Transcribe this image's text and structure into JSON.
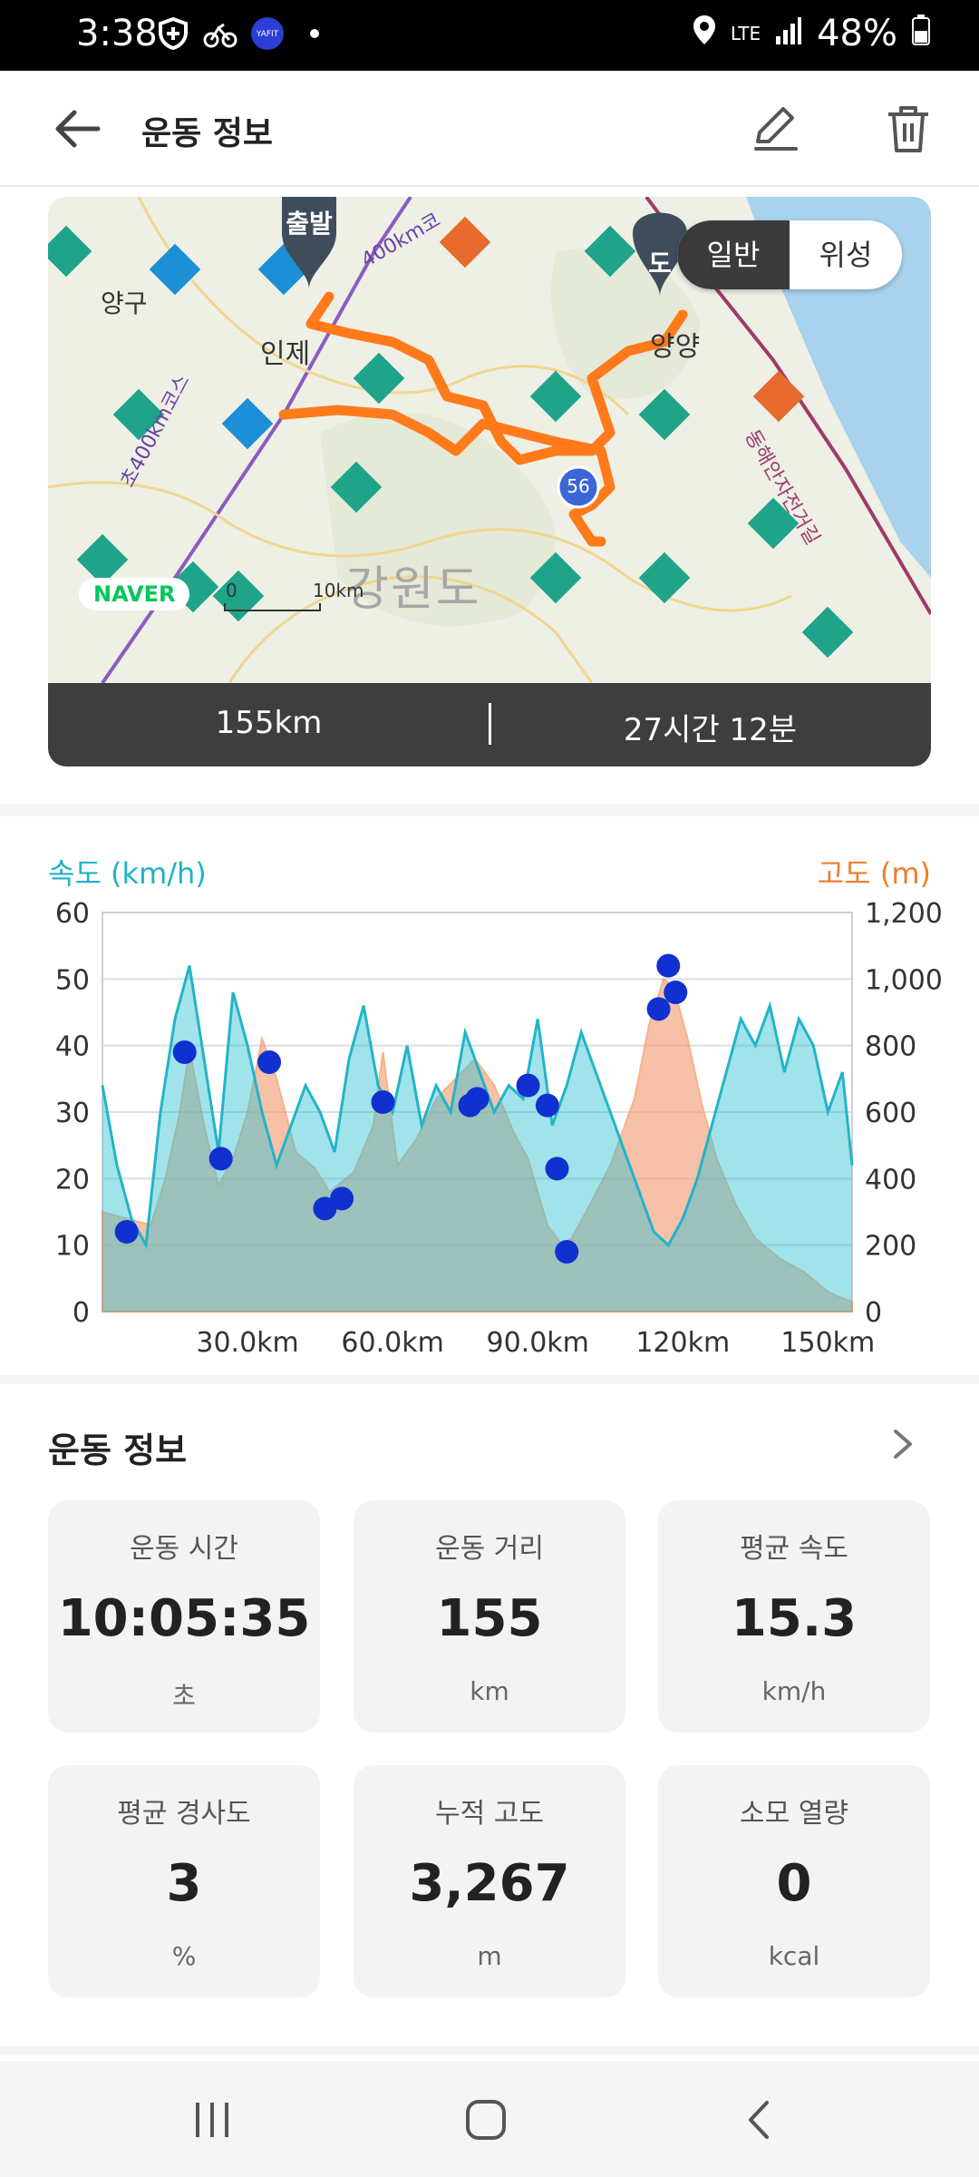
{
  "status_bar": {
    "time": "3:38",
    "network": "LTE",
    "battery": "48%",
    "left_icons": [
      "shield-icon",
      "bike-app-icon",
      "yafit-move-icon",
      "dot-icon"
    ]
  },
  "header": {
    "title": "운동 정보",
    "back_icon": "arrow-left-icon",
    "edit_icon": "pencil-icon",
    "delete_icon": "trash-icon"
  },
  "map": {
    "toggle": {
      "options": [
        "일반",
        "위성"
      ],
      "selected": "일반"
    },
    "labels": {
      "start_pin": "출발",
      "end_pin": "도",
      "place_yanggu": "양구",
      "place_inje": "인제",
      "place_yangyang": "양양",
      "region": "강원도",
      "road_1": "400km코",
      "road_2": "초400km코스",
      "coastal_road": "동해안자전거길",
      "route_badge": "56",
      "scale_zero": "0",
      "scale_ten": "10km",
      "naver_logo": "NAVER"
    },
    "route_color": "#ff7a1a",
    "summary": {
      "distance": "155km",
      "duration": "27시간 12분"
    }
  },
  "chart": {
    "left_axis_label": "속도 (km/h)",
    "right_axis_label": "고도 (m)",
    "left_ticks": [
      "0",
      "10",
      "20",
      "30",
      "40",
      "50",
      "60"
    ],
    "right_ticks": [
      "0",
      "200",
      "400",
      "600",
      "800",
      "1,000",
      "1,200"
    ],
    "x_ticks": [
      "30.0km",
      "60.0km",
      "90.0km",
      "120km",
      "150km"
    ]
  },
  "chart_data": {
    "type": "area",
    "x_unit": "km",
    "xlim": [
      0,
      155
    ],
    "ylim_left": [
      0,
      60
    ],
    "ylim_right": [
      0,
      1200
    ],
    "grid": true,
    "colors": {
      "speed": "#2fc1d2",
      "altitude": "#f4a07a",
      "markers": "#1130d0"
    },
    "series": [
      {
        "name": "속도 (km/h)",
        "axis": "left",
        "x": [
          0,
          3,
          6,
          9,
          12,
          15,
          18,
          21,
          24,
          27,
          30,
          33,
          36,
          39,
          42,
          45,
          48,
          51,
          54,
          57,
          60,
          63,
          66,
          69,
          72,
          75,
          78,
          81,
          84,
          87,
          90,
          93,
          96,
          99,
          102,
          105,
          108,
          111,
          114,
          117,
          120,
          123,
          126,
          129,
          132,
          135,
          138,
          141,
          144,
          147,
          150,
          153,
          155
        ],
        "values": [
          34,
          22,
          14,
          10,
          30,
          44,
          52,
          38,
          24,
          48,
          40,
          30,
          22,
          28,
          34,
          30,
          24,
          38,
          46,
          34,
          30,
          40,
          28,
          34,
          30,
          42,
          36,
          30,
          34,
          32,
          44,
          28,
          34,
          42,
          36,
          30,
          24,
          18,
          12,
          10,
          14,
          20,
          28,
          36,
          44,
          40,
          46,
          36,
          44,
          40,
          30,
          36,
          22
        ]
      },
      {
        "name": "고도 (m)",
        "axis": "right",
        "x": [
          0,
          5,
          10,
          13,
          16,
          18,
          21,
          24,
          27,
          30,
          33,
          36,
          40,
          44,
          47,
          52,
          56,
          58,
          61,
          65,
          69,
          73,
          77,
          81,
          85,
          88,
          92,
          95,
          97,
          100,
          105,
          110,
          113,
          116,
          118,
          121,
          124,
          127,
          131,
          135,
          140,
          145,
          150,
          153,
          155
        ],
        "values": [
          300,
          280,
          260,
          400,
          600,
          790,
          560,
          380,
          460,
          600,
          820,
          700,
          480,
          430,
          360,
          420,
          560,
          780,
          440,
          520,
          640,
          700,
          760,
          680,
          540,
          460,
          260,
          200,
          220,
          300,
          440,
          640,
          860,
          1000,
          980,
          820,
          620,
          460,
          320,
          220,
          160,
          120,
          60,
          40,
          30
        ]
      },
      {
        "name": "markers",
        "axis": "left",
        "x": [
          5,
          17,
          24.5,
          34.5,
          46,
          49.5,
          58,
          76,
          77.5,
          88,
          92,
          94,
          96,
          115,
          117,
          118.5
        ],
        "values": [
          12,
          39,
          23,
          37.5,
          15.5,
          17,
          31.5,
          31,
          32,
          34,
          31,
          21.5,
          9,
          45.5,
          52,
          48
        ]
      }
    ]
  },
  "stats_section": {
    "title": "운동 정보",
    "items": [
      {
        "label": "운동 시간",
        "value": "10:05:35",
        "unit": "초"
      },
      {
        "label": "운동 거리",
        "value": "155",
        "unit": "km"
      },
      {
        "label": "평균 속도",
        "value": "15.3",
        "unit": "km/h"
      },
      {
        "label": "평균 경사도",
        "value": "3",
        "unit": "%"
      },
      {
        "label": "누적 고도",
        "value": "3,267",
        "unit": "m"
      },
      {
        "label": "소모 열량",
        "value": "0",
        "unit": "kcal"
      }
    ]
  },
  "nav_bar": {
    "icons": [
      "recent-apps-icon",
      "home-icon",
      "back-icon"
    ]
  }
}
